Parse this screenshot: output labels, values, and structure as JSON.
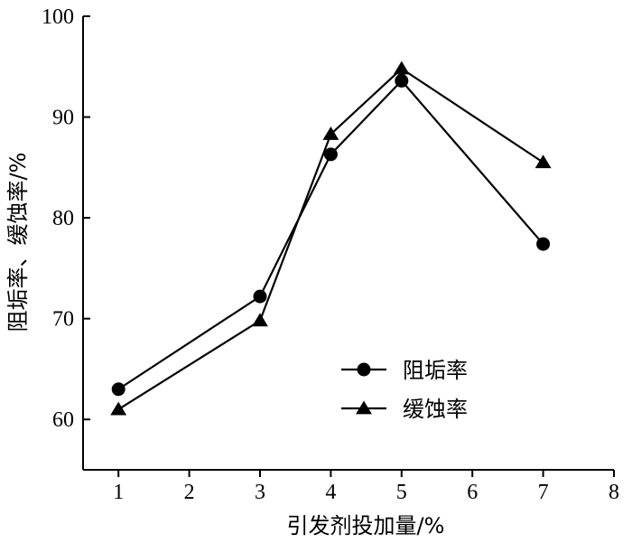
{
  "chart_data": {
    "type": "line",
    "xlabel": "引发剂投加量/%",
    "ylabel": "阻垢率、缓蚀率/%",
    "xlim": [
      0.5,
      8
    ],
    "ylim": [
      55,
      100
    ],
    "xticks": [
      1,
      2,
      3,
      4,
      5,
      6,
      7,
      8
    ],
    "yticks": [
      60,
      70,
      80,
      90,
      100
    ],
    "grid": false,
    "legend_position": "lower-right",
    "series": [
      {
        "name": "阻垢率",
        "marker": "circle",
        "color": "#000000",
        "x": [
          1,
          3,
          4,
          5,
          7
        ],
        "y": [
          63.0,
          72.2,
          86.3,
          93.6,
          77.4
        ]
      },
      {
        "name": "缓蚀率",
        "marker": "triangle",
        "color": "#000000",
        "x": [
          1,
          3,
          4,
          5,
          7
        ],
        "y": [
          61.0,
          69.8,
          88.3,
          94.8,
          85.5
        ]
      }
    ]
  }
}
